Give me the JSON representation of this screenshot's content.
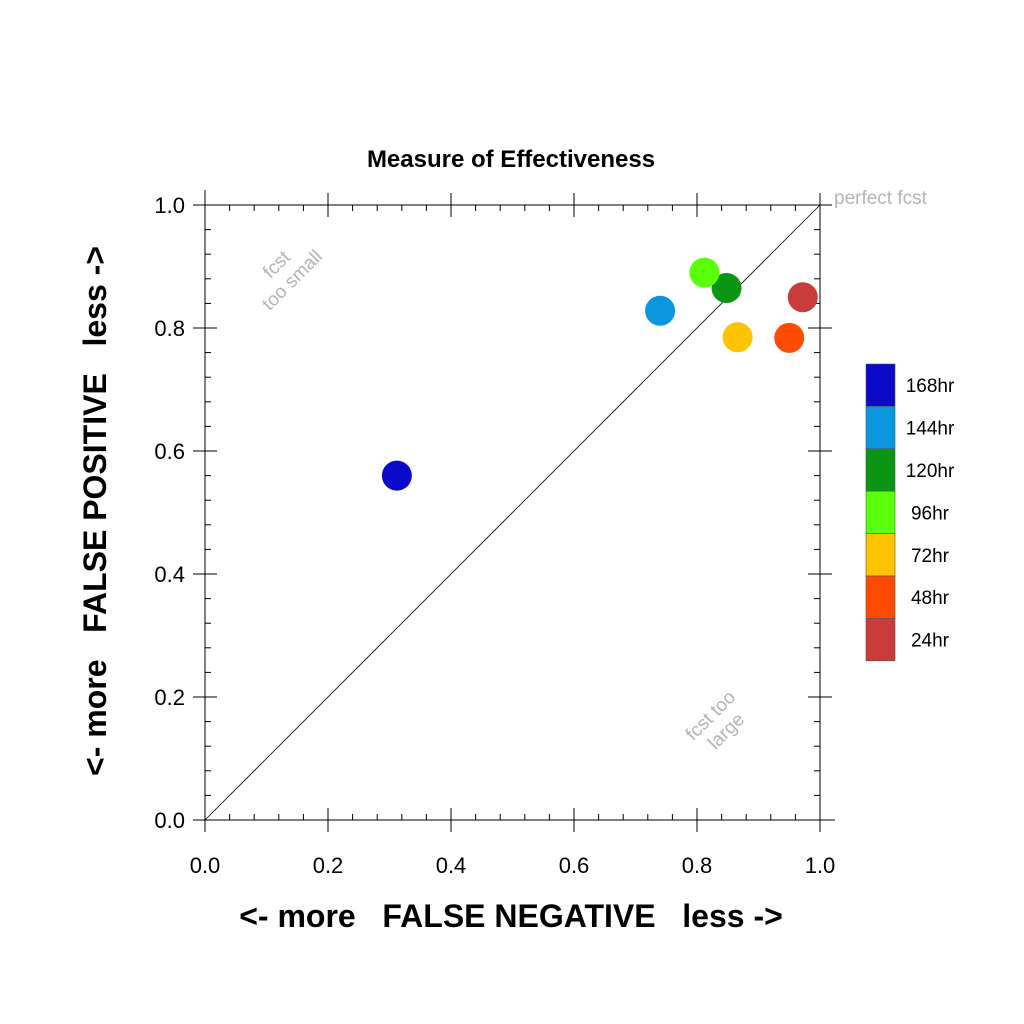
{
  "chart_data": {
    "type": "scatter",
    "title": "Measure of Effectiveness",
    "xlabel": "<- more   FALSE NEGATIVE   less ->",
    "ylabel": "<- more   FALSE POSITIVE   less ->",
    "xlim": [
      0.0,
      1.0
    ],
    "ylim": [
      0.0,
      1.0
    ],
    "xticks": [
      "0.0",
      "0.2",
      "0.4",
      "0.6",
      "0.8",
      "1.0"
    ],
    "yticks": [
      "0.0",
      "0.2",
      "0.4",
      "0.6",
      "0.8",
      "1.0"
    ],
    "grid": false,
    "legend": "right",
    "reference_line": {
      "from": [
        0.0,
        0.0
      ],
      "to": [
        1.0,
        1.0
      ]
    },
    "annotations": {
      "perfect": "perfect fcst",
      "too_small": [
        "fcst",
        "too small"
      ],
      "too_large": [
        "fcst too",
        "large"
      ]
    },
    "series": [
      {
        "name": "168hr",
        "color": "#0a0ac8",
        "x": 0.312,
        "y": 0.56
      },
      {
        "name": "144hr",
        "color": "#0a96dc",
        "x": 0.74,
        "y": 0.828
      },
      {
        "name": "120hr",
        "color": "#0a9614",
        "x": 0.848,
        "y": 0.865
      },
      {
        "name": "96hr",
        "color": "#5aff0a",
        "x": 0.812,
        "y": 0.89
      },
      {
        "name": "72hr",
        "color": "#ffc300",
        "x": 0.866,
        "y": 0.785
      },
      {
        "name": "48hr",
        "color": "#ff4b00",
        "x": 0.95,
        "y": 0.784
      },
      {
        "name": "24hr",
        "color": "#c83c3c",
        "x": 0.972,
        "y": 0.85
      }
    ]
  }
}
